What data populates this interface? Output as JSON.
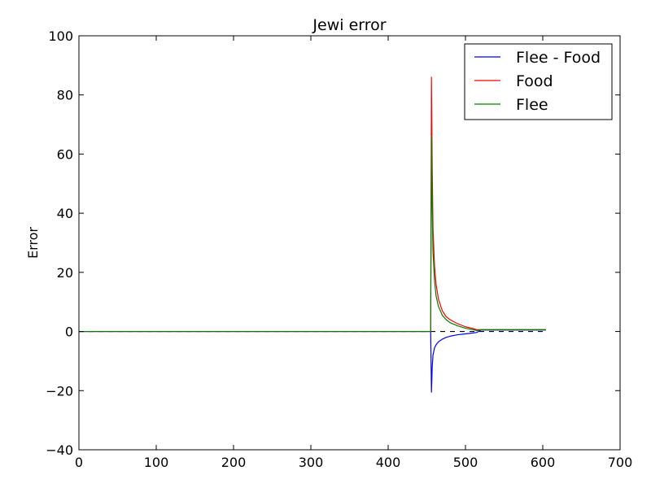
{
  "chart_data": {
    "type": "line",
    "title": "Jewi error",
    "xlabel": "",
    "ylabel": "Error",
    "xlim": [
      0,
      700
    ],
    "ylim": [
      -40,
      100
    ],
    "xticks": [
      0,
      100,
      200,
      300,
      400,
      500,
      600,
      700
    ],
    "yticks": [
      -40,
      -20,
      0,
      20,
      40,
      60,
      80,
      100
    ],
    "xtick_labels": [
      "0",
      "100",
      "200",
      "300",
      "400",
      "500",
      "600",
      "700"
    ],
    "ytick_labels": [
      "−40",
      "−20",
      "0",
      "20",
      "40",
      "60",
      "80",
      "100"
    ],
    "grid": false,
    "legend_position": "top-right",
    "reference_line": {
      "y": 0,
      "style": "dashed",
      "color": "#000000",
      "x_range": [
        0,
        604
      ]
    },
    "series": [
      {
        "name": "Flee - Food",
        "color": "#0000ff",
        "x": [
          0,
          455,
          456,
          457,
          458,
          460,
          462,
          465,
          470,
          475,
          480,
          490,
          500,
          510,
          515,
          520,
          525,
          530,
          540,
          560,
          580,
          604
        ],
        "y": [
          0,
          0,
          -20.5,
          -12,
          -8,
          -5.5,
          -4.5,
          -3.5,
          -2.6,
          -2.0,
          -1.6,
          -1.1,
          -0.8,
          -0.5,
          -0.3,
          0.5,
          0.5,
          0.5,
          0.5,
          0.5,
          0.5,
          0.5
        ]
      },
      {
        "name": "Food",
        "color": "#ff0000",
        "x": [
          0,
          455,
          456,
          457,
          458,
          460,
          462,
          465,
          470,
          475,
          480,
          490,
          500,
          510,
          515,
          520,
          525,
          530,
          540,
          560,
          580,
          604
        ],
        "y": [
          0,
          0,
          86,
          55,
          35,
          22,
          16,
          11,
          7,
          5,
          4,
          2.6,
          1.6,
          1.0,
          0.6,
          0.6,
          0.6,
          0.6,
          0.6,
          0.6,
          0.6,
          0.6
        ]
      },
      {
        "name": "Flee",
        "color": "#008000",
        "x": [
          0,
          454,
          455,
          456,
          457,
          458,
          460,
          462,
          465,
          470,
          475,
          480,
          490,
          500,
          510,
          515,
          520,
          525,
          530,
          540,
          560,
          580,
          604
        ],
        "y": [
          0,
          0,
          0,
          66,
          42,
          27,
          17,
          12,
          8.5,
          5.5,
          4,
          3,
          1.9,
          1.1,
          0.6,
          0.3,
          0.6,
          0.6,
          0.6,
          0.6,
          0.6,
          0.6,
          0.6
        ]
      }
    ]
  }
}
